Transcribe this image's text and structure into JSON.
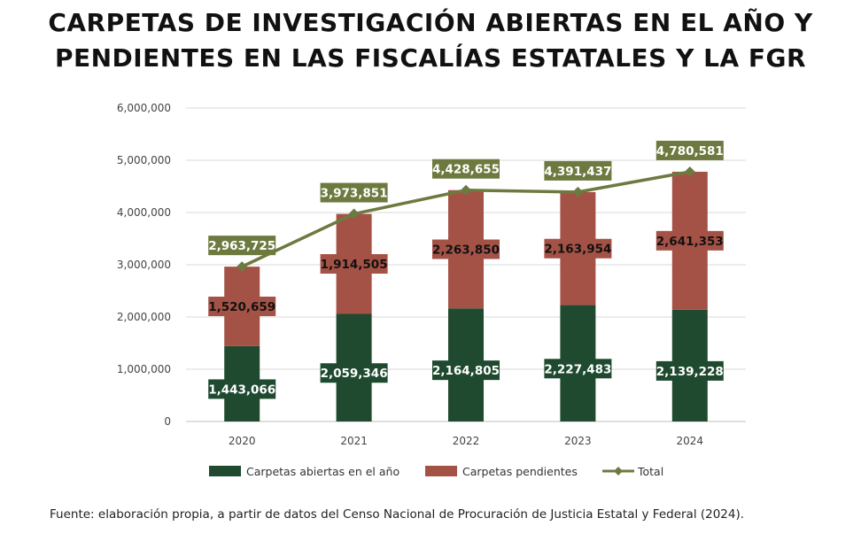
{
  "title": {
    "line1": "CARPETAS DE INVESTIGACIÓN ABIERTAS EN EL AÑO Y",
    "line2": "PENDIENTES EN LAS FISCALÍAS ESTATALES Y LA FGR"
  },
  "source": "Fuente: elaboración propia, a partir de datos del Censo Nacional de Procuración de Justicia Estatal y Federal (2024).",
  "colors": {
    "abiertas": "#1f4a30",
    "pendientes": "#a45246",
    "total": "#6d7a3f",
    "grid": "#d9d9d9"
  },
  "chart_data": {
    "type": "bar",
    "stacked": true,
    "categories": [
      "2020",
      "2021",
      "2022",
      "2023",
      "2024"
    ],
    "series": [
      {
        "name": "Carpetas abiertas en el año",
        "type": "bar",
        "values": [
          1443066,
          2059346,
          2164805,
          2227483,
          2139228
        ],
        "labels": [
          "1,443,066",
          "2,059,346",
          "2,164,805",
          "2,227,483",
          "2,139,228"
        ]
      },
      {
        "name": "Carpetas pendientes",
        "type": "bar",
        "values": [
          1520659,
          1914505,
          2263850,
          2163954,
          2641353
        ],
        "labels": [
          "1,520,659",
          "1,914,505",
          "2,263,850",
          "2,163,954",
          "2,641,353"
        ]
      },
      {
        "name": "Total",
        "type": "line",
        "values": [
          2963725,
          3973851,
          4428655,
          4391437,
          4780581
        ],
        "labels": [
          "2,963,725",
          "3,973,851",
          "4,428,655",
          "4,391,437",
          "4,780,581"
        ]
      }
    ],
    "yticks": [
      "0",
      "1,000,000",
      "2,000,000",
      "3,000,000",
      "4,000,000",
      "5,000,000",
      "6,000,000"
    ],
    "ylim": [
      0,
      6000000
    ],
    "grid": true,
    "legend_position": "bottom"
  }
}
